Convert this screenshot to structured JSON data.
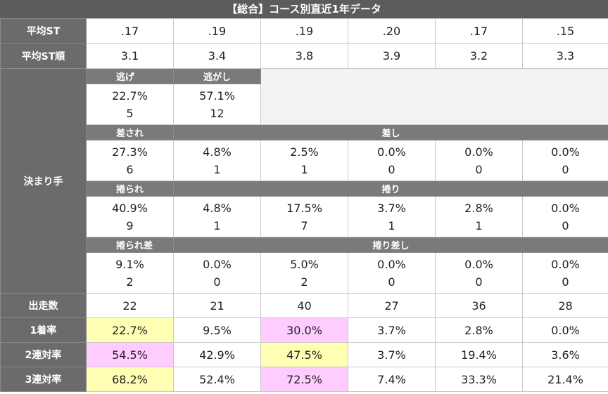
{
  "title": "【総合】コース別直近1年データ",
  "rows": {
    "avg_st": {
      "label": "平均ST",
      "values": [
        ".17",
        ".19",
        ".19",
        ".20",
        ".17",
        ".15"
      ]
    },
    "avg_st_rank": {
      "label": "平均ST順",
      "values": [
        "3.1",
        "3.4",
        "3.8",
        "3.9",
        "3.2",
        "3.3"
      ]
    }
  },
  "kimarite": {
    "label": "決まり手",
    "nige_label": "逃げ",
    "nigashi_label": "逃がし",
    "nige": {
      "pct": "22.7%",
      "count": "5"
    },
    "nigashi": {
      "pct": "57.1%",
      "count": "12"
    },
    "sasare_label": "差され",
    "sashi_label": "差し",
    "sashi_row": [
      {
        "pct": "27.3%",
        "count": "6"
      },
      {
        "pct": "4.8%",
        "count": "1"
      },
      {
        "pct": "2.5%",
        "count": "1"
      },
      {
        "pct": "0.0%",
        "count": "0"
      },
      {
        "pct": "0.0%",
        "count": "0"
      },
      {
        "pct": "0.0%",
        "count": "0"
      }
    ],
    "makurare_label": "捲られ",
    "makuri_label": "捲り",
    "makuri_row": [
      {
        "pct": "40.9%",
        "count": "9"
      },
      {
        "pct": "4.8%",
        "count": "1"
      },
      {
        "pct": "17.5%",
        "count": "7"
      },
      {
        "pct": "3.7%",
        "count": "1"
      },
      {
        "pct": "2.8%",
        "count": "1"
      },
      {
        "pct": "0.0%",
        "count": "0"
      }
    ],
    "makurare_sa_label": "捲られ差",
    "makuri_sashi_label": "捲り差し",
    "makuri_sashi_row": [
      {
        "pct": "9.1%",
        "count": "2"
      },
      {
        "pct": "0.0%",
        "count": "0"
      },
      {
        "pct": "5.0%",
        "count": "2"
      },
      {
        "pct": "0.0%",
        "count": "0"
      },
      {
        "pct": "0.0%",
        "count": "0"
      },
      {
        "pct": "0.0%",
        "count": "0"
      }
    ]
  },
  "starts": {
    "label": "出走数",
    "values": [
      "22",
      "21",
      "40",
      "27",
      "36",
      "28"
    ]
  },
  "win_rate": {
    "label": "1着率",
    "values": [
      "22.7%",
      "9.5%",
      "30.0%",
      "3.7%",
      "2.8%",
      "0.0%"
    ]
  },
  "quinella_rate": {
    "label": "2連対率",
    "values": [
      "54.5%",
      "42.9%",
      "47.5%",
      "3.7%",
      "19.4%",
      "3.6%"
    ]
  },
  "trio_rate": {
    "label": "3連対率",
    "values": [
      "68.2%",
      "52.4%",
      "72.5%",
      "7.4%",
      "33.3%",
      "21.4%"
    ]
  },
  "colors": {
    "highlight_yellow": "#ffffb3",
    "highlight_pink": "#ffccff",
    "header_gray": "#6b6b6b"
  }
}
